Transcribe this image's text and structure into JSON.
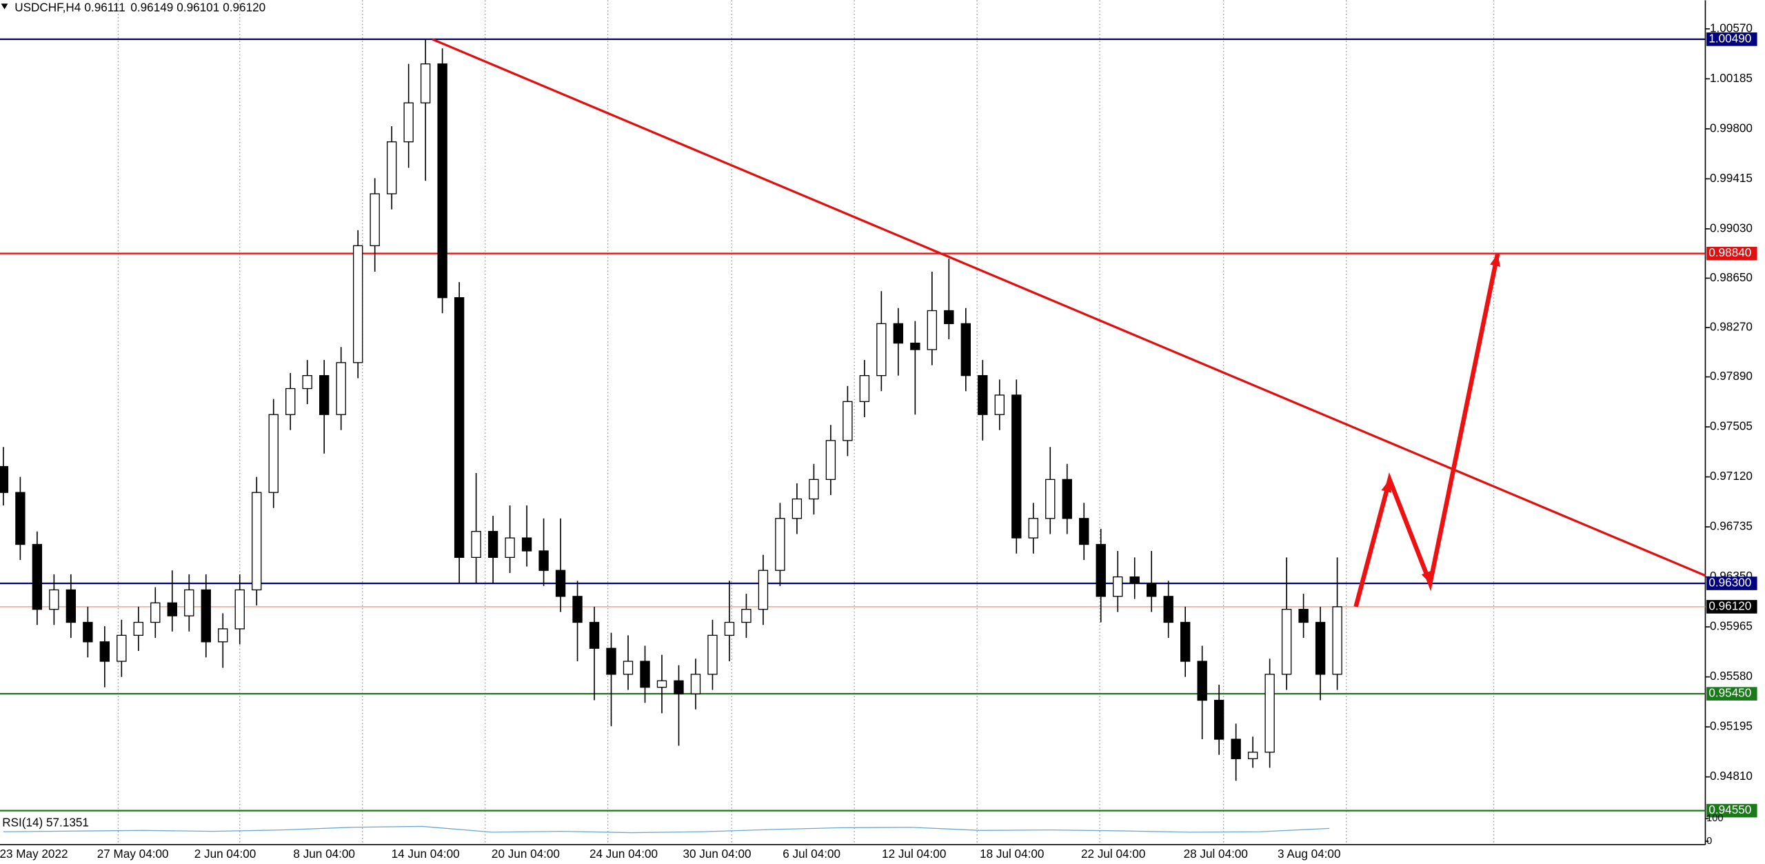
{
  "chart_data": {
    "type": "candlestick",
    "symbol": "USDCHF,H4",
    "quote": [
      "0.96111",
      "0.96149",
      "0.96101",
      "0.96120"
    ],
    "ylim": [
      0.9454,
      1.0079
    ],
    "yticks": [
      {
        "value": 1.0057,
        "label": "1.00570"
      },
      1.00185,
      {
        "value": 0.998,
        "label": "0.99800"
      },
      0.99415,
      {
        "value": 0.9903,
        "label": "0.99030"
      },
      {
        "value": 0.9865,
        "label": "0.98650"
      },
      {
        "value": 0.9827,
        "label": "0.98270"
      },
      {
        "value": 0.9789,
        "label": "0.97890"
      },
      0.97505,
      {
        "value": 0.9712,
        "label": "0.97120"
      },
      0.96735,
      {
        "value": 0.9635,
        "label": "0.96350"
      },
      0.95965,
      {
        "value": 0.9558,
        "label": "0.95580"
      },
      0.95195,
      {
        "value": 0.9481,
        "label": "0.94810"
      }
    ],
    "dates": [
      "23 May 2022",
      "27 May 04:00",
      "2 Jun 04:00",
      "8 Jun 04:00",
      "14 Jun 04:00",
      "20 Jun 04:00",
      "24 Jun 04:00",
      "30 Jun 04:00",
      "6 Jul 04:00",
      "12 Jul 04:00",
      "18 Jul 04:00",
      "22 Jul 04:00",
      "28 Jul 04:00",
      "3 Aug 04:00"
    ],
    "levels": [
      {
        "value": 1.0049,
        "label": "1.00490",
        "color": "#000080"
      },
      {
        "value": 0.9884,
        "label": "0.98840",
        "color": "#e01010"
      },
      {
        "value": 0.963,
        "label": "0.96300",
        "color": "#000080"
      },
      {
        "value": 0.9612,
        "label": "0.96120",
        "color": "#000000"
      },
      {
        "value": 0.9545,
        "label": "0.95450",
        "color": "#1a7a1a"
      },
      {
        "value": 0.9455,
        "label": "0.94550",
        "color": "#1a7a1a"
      }
    ],
    "trendline": {
      "from": [
        25.4,
        1.0049
      ],
      "to": [
        100.8,
        0.9636
      ],
      "color": "#e01010"
    },
    "arrow": {
      "color": "#ee1111",
      "points": [
        [
          80.1,
          0.9612
        ],
        [
          82.1,
          0.971
        ],
        [
          84.5,
          0.963
        ],
        [
          88.5,
          0.9884
        ]
      ]
    },
    "candles": [
      [
        0.972,
        0.9735,
        0.969,
        0.97
      ],
      [
        0.97,
        0.9712,
        0.9648,
        0.966
      ],
      [
        0.966,
        0.967,
        0.9598,
        0.961
      ],
      [
        0.961,
        0.9637,
        0.9598,
        0.9625
      ],
      [
        0.9625,
        0.9637,
        0.9588,
        0.96
      ],
      [
        0.96,
        0.9612,
        0.9573,
        0.9585
      ],
      [
        0.9585,
        0.9597,
        0.955,
        0.957
      ],
      [
        0.957,
        0.9602,
        0.9558,
        0.959
      ],
      [
        0.959,
        0.9612,
        0.9578,
        0.96
      ],
      [
        0.96,
        0.9627,
        0.9588,
        0.9615
      ],
      [
        0.9615,
        0.964,
        0.9593,
        0.9605
      ],
      [
        0.9605,
        0.9637,
        0.9593,
        0.9625
      ],
      [
        0.9625,
        0.9637,
        0.9573,
        0.9585
      ],
      [
        0.9585,
        0.9607,
        0.9565,
        0.9595
      ],
      [
        0.9595,
        0.9637,
        0.9583,
        0.9625
      ],
      [
        0.9625,
        0.9712,
        0.9613,
        0.97
      ],
      [
        0.97,
        0.9772,
        0.9688,
        0.976
      ],
      [
        0.976,
        0.9792,
        0.9748,
        0.978
      ],
      [
        0.978,
        0.9802,
        0.9768,
        0.979
      ],
      [
        0.979,
        0.9802,
        0.973,
        0.976
      ],
      [
        0.976,
        0.9812,
        0.9748,
        0.98
      ],
      [
        0.98,
        0.9902,
        0.9788,
        0.989
      ],
      [
        0.989,
        0.9942,
        0.987,
        0.993
      ],
      [
        0.993,
        0.9982,
        0.9918,
        0.997
      ],
      [
        0.997,
        1.003,
        0.995,
        1.0
      ],
      [
        1.0,
        1.0049,
        0.994,
        1.003
      ],
      [
        1.003,
        1.0042,
        0.9838,
        0.985
      ],
      [
        0.985,
        0.9862,
        0.963,
        0.965
      ],
      [
        0.965,
        0.9715,
        0.963,
        0.967
      ],
      [
        0.967,
        0.9682,
        0.963,
        0.965
      ],
      [
        0.965,
        0.969,
        0.9638,
        0.9665
      ],
      [
        0.9665,
        0.969,
        0.9643,
        0.9655
      ],
      [
        0.9655,
        0.968,
        0.9628,
        0.964
      ],
      [
        0.964,
        0.968,
        0.9608,
        0.962
      ],
      [
        0.962,
        0.9632,
        0.957,
        0.96
      ],
      [
        0.96,
        0.9612,
        0.954,
        0.958
      ],
      [
        0.958,
        0.9592,
        0.952,
        0.956
      ],
      [
        0.956,
        0.959,
        0.9548,
        0.957
      ],
      [
        0.957,
        0.9582,
        0.9538,
        0.955
      ],
      [
        0.955,
        0.9575,
        0.953,
        0.9555
      ],
      [
        0.9555,
        0.9567,
        0.9505,
        0.9545
      ],
      [
        0.9545,
        0.9572,
        0.9533,
        0.956
      ],
      [
        0.956,
        0.9602,
        0.9548,
        0.959
      ],
      [
        0.959,
        0.9632,
        0.957,
        0.96
      ],
      [
        0.96,
        0.9622,
        0.9588,
        0.961
      ],
      [
        0.961,
        0.9652,
        0.9598,
        0.964
      ],
      [
        0.964,
        0.9692,
        0.9628,
        0.968
      ],
      [
        0.968,
        0.9707,
        0.9668,
        0.9695
      ],
      [
        0.9695,
        0.9722,
        0.9683,
        0.971
      ],
      [
        0.971,
        0.9752,
        0.9698,
        0.974
      ],
      [
        0.974,
        0.9782,
        0.9728,
        0.977
      ],
      [
        0.977,
        0.9802,
        0.9758,
        0.979
      ],
      [
        0.979,
        0.9855,
        0.9778,
        0.983
      ],
      [
        0.983,
        0.9842,
        0.979,
        0.9815
      ],
      [
        0.9815,
        0.9832,
        0.976,
        0.981
      ],
      [
        0.981,
        0.987,
        0.9798,
        0.984
      ],
      [
        0.984,
        0.988,
        0.9818,
        0.983
      ],
      [
        0.983,
        0.9842,
        0.9778,
        0.979
      ],
      [
        0.979,
        0.9802,
        0.974,
        0.976
      ],
      [
        0.976,
        0.9787,
        0.9748,
        0.9775
      ],
      [
        0.9775,
        0.9787,
        0.9653,
        0.9665
      ],
      [
        0.9665,
        0.9692,
        0.9653,
        0.968
      ],
      [
        0.968,
        0.9735,
        0.9668,
        0.971
      ],
      [
        0.971,
        0.9722,
        0.9668,
        0.968
      ],
      [
        0.968,
        0.9692,
        0.9648,
        0.966
      ],
      [
        0.966,
        0.9672,
        0.96,
        0.962
      ],
      [
        0.962,
        0.9655,
        0.9608,
        0.9635
      ],
      [
        0.9635,
        0.965,
        0.9618,
        0.963
      ],
      [
        0.963,
        0.9655,
        0.9608,
        0.962
      ],
      [
        0.962,
        0.9632,
        0.9588,
        0.96
      ],
      [
        0.96,
        0.9612,
        0.9558,
        0.957
      ],
      [
        0.957,
        0.9582,
        0.951,
        0.954
      ],
      [
        0.954,
        0.9552,
        0.9498,
        0.951
      ],
      [
        0.951,
        0.9522,
        0.9478,
        0.9495
      ],
      [
        0.9495,
        0.9512,
        0.9488,
        0.95
      ],
      [
        0.95,
        0.9572,
        0.9488,
        0.956
      ],
      [
        0.956,
        0.965,
        0.9548,
        0.961
      ],
      [
        0.961,
        0.9622,
        0.9588,
        0.96
      ],
      [
        0.96,
        0.9612,
        0.954,
        0.956
      ],
      [
        0.956,
        0.965,
        0.9548,
        0.9612
      ]
    ],
    "rsi": {
      "label": "RSI(14) 57.1351",
      "color": "#6aa8d8",
      "ylim": [
        0,
        100
      ],
      "yticks": [
        100,
        0
      ],
      "values": [
        42,
        45,
        48,
        44,
        50,
        62,
        66,
        40,
        44,
        38,
        42,
        52,
        60,
        62,
        48,
        50,
        46,
        40,
        42,
        57
      ]
    }
  }
}
